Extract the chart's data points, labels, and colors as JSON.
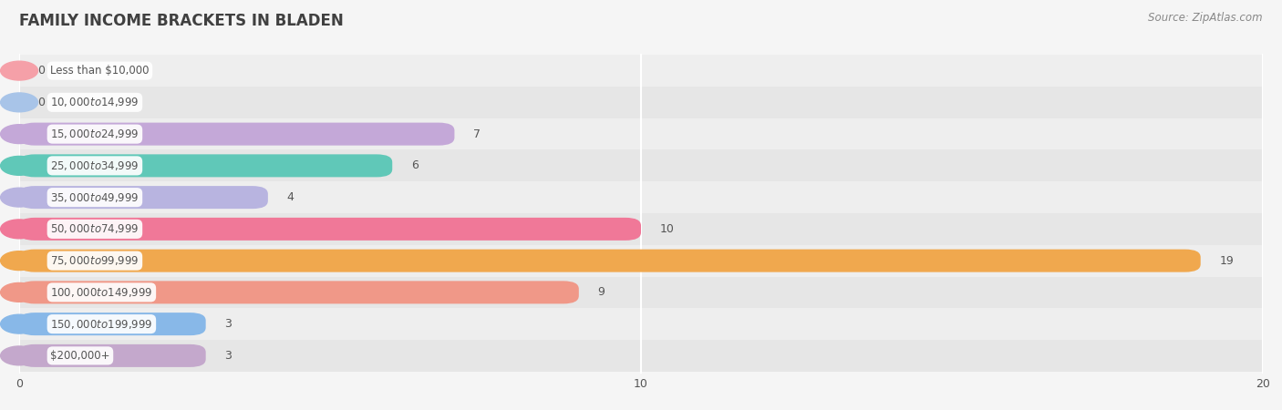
{
  "title": "FAMILY INCOME BRACKETS IN BLADEN",
  "source": "Source: ZipAtlas.com",
  "categories": [
    "Less than $10,000",
    "$10,000 to $14,999",
    "$15,000 to $24,999",
    "$25,000 to $34,999",
    "$35,000 to $49,999",
    "$50,000 to $74,999",
    "$75,000 to $99,999",
    "$100,000 to $149,999",
    "$150,000 to $199,999",
    "$200,000+"
  ],
  "values": [
    0,
    0,
    7,
    6,
    4,
    10,
    19,
    9,
    3,
    3
  ],
  "bar_colors": [
    "#f5a0a8",
    "#a8c4e8",
    "#c4a8d8",
    "#60c8b8",
    "#b8b4e0",
    "#f07898",
    "#f0a84e",
    "#f09888",
    "#88b8e8",
    "#c4a8cc"
  ],
  "xlim": [
    0,
    20
  ],
  "xticks": [
    0,
    10,
    20
  ],
  "background_color": "#f5f5f5",
  "bar_bg_color": "#e4e4e4",
  "row_bg_colors": [
    "#efefef",
    "#e8e8e8"
  ],
  "title_color": "#404040",
  "label_color": "#555555",
  "value_color": "#555555",
  "source_color": "#888888",
  "grid_color": "#ffffff",
  "label_bg_color": "#ffffff"
}
